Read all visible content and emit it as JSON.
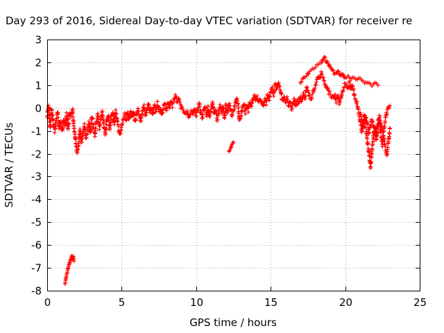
{
  "chart_data": {
    "type": "scatter",
    "title": "Day 293 of 2016, Sidereal Day-to-day VTEC variation (SDTVAR) for receiver re",
    "xlabel": "GPS time / hours",
    "ylabel": "SDTVAR / TECUs",
    "xlim": [
      0,
      25
    ],
    "ylim": [
      -8,
      3
    ],
    "xticks": [
      0,
      5,
      10,
      15,
      20,
      25
    ],
    "yticks": [
      3,
      2,
      1,
      0,
      -1,
      -2,
      -3,
      -4,
      -5,
      -6,
      -7,
      -8
    ],
    "grid": true,
    "marker": "+",
    "color": "#ff0000",
    "trace": [
      [
        0.0,
        -0.4
      ],
      [
        0.1,
        0.1
      ],
      [
        0.2,
        -0.9
      ],
      [
        0.3,
        -0.1
      ],
      [
        0.4,
        -0.6
      ],
      [
        0.5,
        -1.0
      ],
      [
        0.6,
        -0.5
      ],
      [
        0.7,
        -0.2
      ],
      [
        0.8,
        -0.9
      ],
      [
        0.9,
        -0.6
      ],
      [
        1.0,
        -1.0
      ],
      [
        1.1,
        -0.5
      ],
      [
        1.2,
        -0.8
      ],
      [
        1.3,
        -0.3
      ],
      [
        1.4,
        -0.9
      ],
      [
        1.5,
        -0.2
      ],
      [
        1.6,
        -0.3
      ],
      [
        1.7,
        -0.1
      ],
      [
        1.8,
        -0.9
      ],
      [
        1.9,
        -1.4
      ],
      [
        2.0,
        -2.0
      ],
      [
        2.1,
        -1.6
      ],
      [
        2.2,
        -1.0
      ],
      [
        2.3,
        -1.5
      ],
      [
        2.4,
        -1.1
      ],
      [
        2.5,
        -0.7
      ],
      [
        2.6,
        -1.3
      ],
      [
        2.7,
        -1.0
      ],
      [
        2.8,
        -0.6
      ],
      [
        2.9,
        -1.1
      ],
      [
        3.0,
        -0.4
      ],
      [
        3.1,
        -0.8
      ],
      [
        3.2,
        -1.2
      ],
      [
        3.3,
        -0.6
      ],
      [
        3.4,
        -0.3
      ],
      [
        3.5,
        -0.9
      ],
      [
        3.6,
        -0.5
      ],
      [
        3.7,
        -0.2
      ],
      [
        3.8,
        -0.8
      ],
      [
        3.9,
        -1.1
      ],
      [
        4.0,
        -0.6
      ],
      [
        4.1,
        -0.3
      ],
      [
        4.2,
        -0.9
      ],
      [
        4.3,
        -0.4
      ],
      [
        4.4,
        -0.2
      ],
      [
        4.5,
        -0.7
      ],
      [
        4.6,
        -0.1
      ],
      [
        4.7,
        -0.6
      ],
      [
        4.8,
        -0.9
      ],
      [
        4.9,
        -1.2
      ],
      [
        5.0,
        -0.8
      ],
      [
        5.1,
        -0.5
      ],
      [
        5.2,
        -0.3
      ],
      [
        5.3,
        -0.6
      ],
      [
        5.4,
        -0.2
      ],
      [
        5.5,
        -0.5
      ],
      [
        5.6,
        -0.1
      ],
      [
        5.7,
        -0.4
      ],
      [
        5.8,
        -0.2
      ],
      [
        5.9,
        -0.6
      ],
      [
        6.0,
        -0.3
      ],
      [
        6.1,
        -0.1
      ],
      [
        6.2,
        -0.4
      ],
      [
        6.3,
        -0.6
      ],
      [
        6.4,
        -0.2
      ],
      [
        6.5,
        0.1
      ],
      [
        6.6,
        -0.3
      ],
      [
        6.7,
        -0.1
      ],
      [
        6.8,
        0.2
      ],
      [
        6.9,
        -0.2
      ],
      [
        7.0,
        0.0
      ],
      [
        7.1,
        -0.3
      ],
      [
        7.2,
        0.1
      ],
      [
        7.3,
        -0.2
      ],
      [
        7.4,
        0.2
      ],
      [
        7.5,
        -0.1
      ],
      [
        7.6,
        0.0
      ],
      [
        7.7,
        -0.3
      ],
      [
        7.8,
        0.1
      ],
      [
        7.9,
        0.2
      ],
      [
        8.0,
        -0.1
      ],
      [
        8.1,
        0.2
      ],
      [
        8.2,
        0.0
      ],
      [
        8.3,
        0.3
      ],
      [
        8.4,
        0.1
      ],
      [
        8.5,
        0.4
      ],
      [
        8.6,
        0.5
      ],
      [
        8.7,
        0.3
      ],
      [
        8.8,
        0.4
      ],
      [
        8.9,
        0.2
      ],
      [
        9.0,
        0.0
      ],
      [
        9.1,
        -0.1
      ],
      [
        9.2,
        -0.2
      ],
      [
        9.3,
        -0.3
      ],
      [
        9.4,
        -0.2
      ],
      [
        9.5,
        -0.4
      ],
      [
        9.6,
        -0.2
      ],
      [
        9.7,
        -0.1
      ],
      [
        9.8,
        -0.3
      ],
      [
        9.9,
        0.0
      ],
      [
        10.0,
        -0.3
      ],
      [
        10.1,
        -0.1
      ],
      [
        10.2,
        0.2
      ],
      [
        10.3,
        -0.2
      ],
      [
        10.4,
        -0.4
      ],
      [
        10.5,
        -0.1
      ],
      [
        10.6,
        0.1
      ],
      [
        10.7,
        -0.3
      ],
      [
        10.8,
        0.0
      ],
      [
        10.9,
        -0.4
      ],
      [
        11.0,
        -0.1
      ],
      [
        11.1,
        0.2
      ],
      [
        11.2,
        -0.3
      ],
      [
        11.3,
        -0.1
      ],
      [
        11.4,
        -0.5
      ],
      [
        11.5,
        -0.2
      ],
      [
        11.6,
        0.1
      ],
      [
        11.7,
        -0.2
      ],
      [
        11.8,
        0.1
      ],
      [
        11.9,
        -0.4
      ],
      [
        12.0,
        0.1
      ],
      [
        12.1,
        -0.2
      ],
      [
        12.2,
        0.2
      ],
      [
        12.3,
        -0.1
      ],
      [
        12.4,
        -0.3
      ],
      [
        12.5,
        -0.1
      ],
      [
        12.6,
        0.1
      ],
      [
        12.7,
        0.4
      ],
      [
        12.8,
        0.2
      ],
      [
        12.9,
        -0.6
      ],
      [
        13.0,
        -0.4
      ],
      [
        13.1,
        0.0
      ],
      [
        13.2,
        0.2
      ],
      [
        13.3,
        -0.2
      ],
      [
        13.4,
        0.1
      ],
      [
        13.5,
        -0.1
      ],
      [
        13.6,
        0.3
      ],
      [
        13.7,
        0.1
      ],
      [
        13.8,
        0.4
      ],
      [
        13.9,
        0.6
      ],
      [
        14.0,
        0.3
      ],
      [
        14.1,
        0.5
      ],
      [
        14.2,
        0.2
      ],
      [
        14.3,
        0.4
      ],
      [
        14.4,
        0.3
      ],
      [
        14.5,
        0.1
      ],
      [
        14.6,
        0.4
      ],
      [
        14.7,
        0.2
      ],
      [
        14.8,
        0.6
      ],
      [
        14.9,
        0.4
      ],
      [
        15.0,
        0.7
      ],
      [
        15.1,
        0.9
      ],
      [
        15.2,
        0.6
      ],
      [
        15.3,
        1.0
      ],
      [
        15.4,
        0.8
      ],
      [
        15.5,
        1.1
      ],
      [
        15.6,
        0.9
      ],
      [
        15.7,
        0.6
      ],
      [
        15.8,
        0.3
      ],
      [
        15.9,
        0.5
      ],
      [
        16.0,
        0.2
      ],
      [
        16.1,
        0.4
      ],
      [
        16.2,
        0.1
      ],
      [
        16.3,
        0.3
      ],
      [
        16.4,
        0.0
      ],
      [
        16.5,
        0.2
      ],
      [
        16.6,
        0.4
      ],
      [
        16.7,
        0.1
      ],
      [
        16.8,
        0.3
      ],
      [
        16.9,
        0.2
      ],
      [
        17.0,
        0.5
      ],
      [
        17.1,
        0.3
      ],
      [
        17.2,
        0.6
      ],
      [
        17.3,
        0.4
      ],
      [
        17.4,
        0.9
      ],
      [
        17.5,
        0.7
      ],
      [
        17.6,
        0.5
      ],
      [
        17.7,
        0.4
      ],
      [
        17.8,
        0.6
      ],
      [
        17.9,
        0.8
      ],
      [
        18.0,
        1.0
      ],
      [
        18.1,
        1.2
      ],
      [
        18.2,
        1.4
      ],
      [
        18.3,
        1.3
      ],
      [
        18.4,
        1.5
      ],
      [
        18.5,
        1.4
      ],
      [
        18.6,
        1.2
      ],
      [
        18.7,
        1.0
      ],
      [
        18.8,
        0.9
      ],
      [
        18.9,
        0.7
      ],
      [
        19.0,
        0.6
      ],
      [
        19.1,
        0.5
      ],
      [
        19.2,
        0.4
      ],
      [
        19.3,
        0.6
      ],
      [
        19.4,
        0.3
      ],
      [
        19.5,
        0.5
      ],
      [
        19.6,
        0.2
      ],
      [
        19.7,
        0.4
      ],
      [
        19.8,
        0.7
      ],
      [
        19.9,
        0.9
      ],
      [
        20.0,
        1.1
      ],
      [
        20.1,
        1.0
      ],
      [
        20.2,
        0.9
      ],
      [
        20.3,
        1.1
      ],
      [
        20.4,
        0.8
      ],
      [
        20.5,
        1.0
      ],
      [
        20.6,
        0.6
      ],
      [
        20.7,
        0.4
      ],
      [
        20.8,
        0.2
      ],
      [
        20.9,
        -0.2
      ],
      [
        21.0,
        -0.6
      ],
      [
        21.1,
        -1.0
      ],
      [
        21.2,
        -0.7
      ],
      [
        21.3,
        -0.3
      ],
      [
        21.4,
        -0.9
      ],
      [
        21.5,
        -1.5
      ],
      [
        21.6,
        -2.0
      ],
      [
        21.7,
        -2.6
      ],
      [
        21.8,
        -1.8
      ],
      [
        21.9,
        -1.2
      ],
      [
        22.0,
        -0.8
      ],
      [
        22.1,
        -1.4
      ],
      [
        22.2,
        -1.0
      ],
      [
        22.3,
        -0.6
      ],
      [
        22.4,
        -1.2
      ],
      [
        22.5,
        -1.6
      ],
      [
        22.6,
        -0.9
      ],
      [
        22.7,
        -0.5
      ],
      [
        22.8,
        -0.2
      ],
      [
        22.9,
        0.0
      ],
      [
        23.0,
        0.1
      ]
    ],
    "trace_upper": [
      [
        17.0,
        1.1
      ],
      [
        17.2,
        1.3
      ],
      [
        17.4,
        1.4
      ],
      [
        17.6,
        1.6
      ],
      [
        17.8,
        1.7
      ],
      [
        18.0,
        1.8
      ],
      [
        18.2,
        1.9
      ],
      [
        18.4,
        2.0
      ],
      [
        18.5,
        2.1
      ],
      [
        18.6,
        2.2
      ],
      [
        18.7,
        2.1
      ],
      [
        18.8,
        2.0
      ],
      [
        18.9,
        1.9
      ],
      [
        19.0,
        1.8
      ],
      [
        19.1,
        1.7
      ],
      [
        19.2,
        1.6
      ],
      [
        19.3,
        1.5
      ],
      [
        19.4,
        1.5
      ],
      [
        19.5,
        1.6
      ],
      [
        19.6,
        1.5
      ],
      [
        19.7,
        1.4
      ],
      [
        19.8,
        1.5
      ],
      [
        19.9,
        1.4
      ],
      [
        20.0,
        1.3
      ],
      [
        20.2,
        1.4
      ],
      [
        20.4,
        1.3
      ],
      [
        20.6,
        1.3
      ],
      [
        20.8,
        1.2
      ],
      [
        21.0,
        1.3
      ],
      [
        21.2,
        1.2
      ],
      [
        21.4,
        1.1
      ],
      [
        21.6,
        1.1
      ],
      [
        21.8,
        1.0
      ],
      [
        22.0,
        1.1
      ],
      [
        22.2,
        1.0
      ]
    ],
    "trace_lower_right": [
      [
        21.0,
        -0.2
      ],
      [
        21.1,
        -0.5
      ],
      [
        21.2,
        -0.9
      ],
      [
        21.3,
        -0.6
      ],
      [
        21.4,
        -0.4
      ],
      [
        21.5,
        -0.8
      ],
      [
        21.6,
        -1.1
      ],
      [
        21.7,
        -0.7
      ],
      [
        21.8,
        -0.5
      ],
      [
        21.9,
        -0.9
      ],
      [
        22.0,
        -1.3
      ],
      [
        22.1,
        -0.9
      ],
      [
        22.2,
        -0.6
      ],
      [
        22.3,
        -0.4
      ],
      [
        22.4,
        -0.7
      ],
      [
        22.5,
        -1.0
      ],
      [
        22.6,
        -1.4
      ],
      [
        22.7,
        -1.8
      ],
      [
        22.8,
        -2.0
      ],
      [
        22.9,
        -1.5
      ],
      [
        23.0,
        -0.9
      ]
    ],
    "segment_mid": [
      [
        12.2,
        -1.9
      ],
      [
        12.3,
        -1.8
      ],
      [
        12.4,
        -1.6
      ],
      [
        12.5,
        -1.5
      ]
    ],
    "segment_low": [
      [
        1.2,
        -7.7
      ],
      [
        1.25,
        -7.5
      ],
      [
        1.3,
        -7.3
      ],
      [
        1.35,
        -7.2
      ],
      [
        1.4,
        -7.0
      ],
      [
        1.45,
        -6.9
      ],
      [
        1.5,
        -6.8
      ],
      [
        1.55,
        -6.7
      ],
      [
        1.6,
        -6.6
      ],
      [
        1.65,
        -6.5
      ],
      [
        1.7,
        -6.6
      ],
      [
        1.75,
        -6.5
      ],
      [
        1.8,
        -6.7
      ]
    ]
  }
}
